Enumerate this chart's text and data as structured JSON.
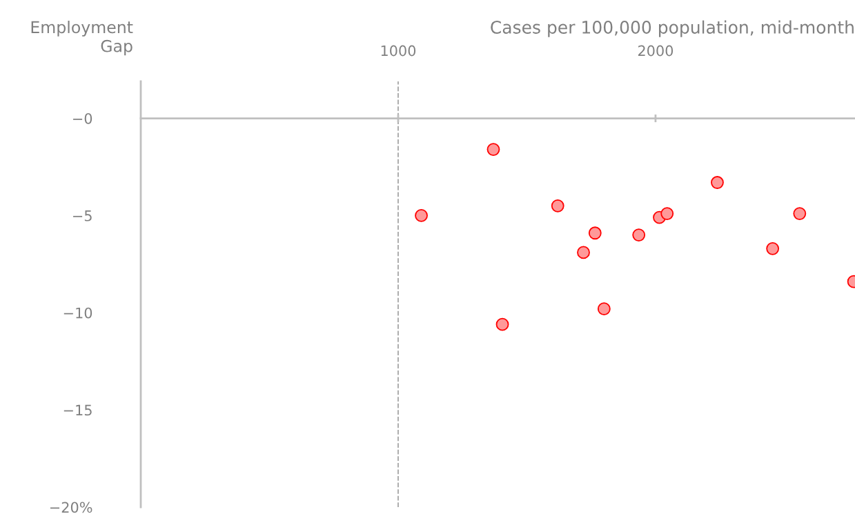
{
  "chart_data": {
    "type": "scatter",
    "xlabel": "Cases per 100,000 population, mid-month",
    "ylabel": "Employment\nGap",
    "x": [
      1090,
      1370,
      1405,
      1620,
      1720,
      1765,
      1800,
      1935,
      2015,
      2045,
      2240,
      2455,
      2560,
      2770
    ],
    "series": [
      {
        "color": "#ff9999",
        "values": [
          -5.0,
          -1.6,
          -10.6,
          -4.5,
          -6.9,
          -5.9,
          -9.8,
          -6.0,
          -5.1,
          -4.9,
          -3.3,
          -6.7,
          -4.9,
          -8.4
        ]
      }
    ],
    "xlim": [
      0,
      2775
    ],
    "xticks": [
      1000,
      2000
    ],
    "ylim": [
      -20,
      1.9
    ],
    "yticks": [
      {
        "value": 0,
        "label": "−0"
      },
      {
        "value": -5,
        "label": "−5"
      },
      {
        "value": -10,
        "label": "−10"
      },
      {
        "value": -15,
        "label": "−15"
      },
      {
        "value": -20,
        "label": "−20%"
      }
    ],
    "ref_lines": [
      {
        "axis": "x",
        "value": 1000,
        "color": "#a6a6a6",
        "line_style": "dashed"
      }
    ],
    "marker": "circle",
    "grid": false,
    "legend": false
  }
}
